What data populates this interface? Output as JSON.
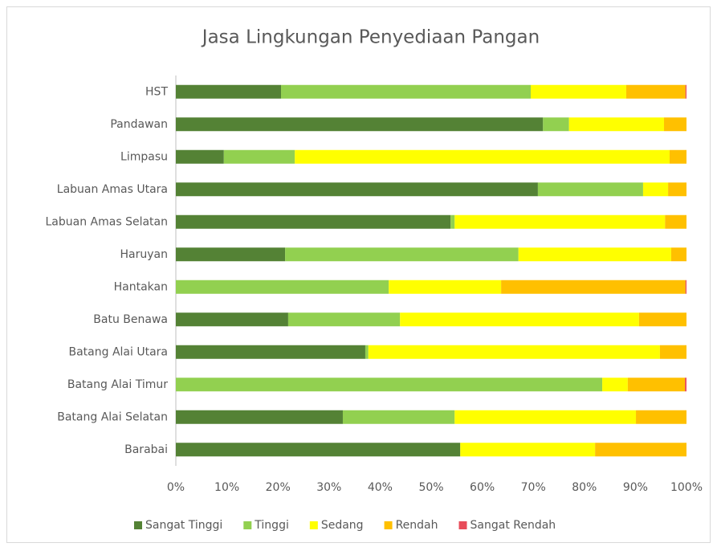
{
  "chart_data": {
    "type": "stacked-bar-horizontal",
    "title": "Jasa Lingkungan Penyediaan Pangan",
    "categories": [
      "HST",
      "Pandawan",
      "Limpasu",
      "Labuan Amas Utara",
      "Labuan Amas Selatan",
      "Haruyan",
      "Hantakan",
      "Batu Benawa",
      "Batang Alai Utara",
      "Batang Alai Timur",
      "Batang Alai Selatan",
      "Barabai"
    ],
    "series": [
      {
        "name": "Sangat Tinggi",
        "color": "#548235",
        "values": [
          20.6,
          71.9,
          9.4,
          70.9,
          53.8,
          21.4,
          0,
          22.0,
          37.1,
          0,
          32.7,
          55.7
        ]
      },
      {
        "name": "Tinggi",
        "color": "#92d050",
        "values": [
          48.9,
          5.1,
          13.9,
          20.6,
          0.8,
          45.7,
          41.7,
          21.9,
          0.6,
          83.5,
          21.9,
          0
        ]
      },
      {
        "name": "Sedang",
        "color": "#ffff00",
        "values": [
          18.7,
          18.6,
          73.4,
          4.9,
          41.2,
          29.9,
          22.0,
          46.8,
          57.1,
          5.0,
          35.5,
          26.4
        ]
      },
      {
        "name": "Rendah",
        "color": "#ffc000",
        "values": [
          11.6,
          4.4,
          3.3,
          3.6,
          4.2,
          3.0,
          36.1,
          9.3,
          5.2,
          11.2,
          9.9,
          17.9
        ]
      },
      {
        "name": "Sangat Rendah",
        "color": "#e84c5a",
        "values": [
          0.2,
          0,
          0,
          0,
          0,
          0,
          0.2,
          0,
          0,
          0.3,
          0,
          0
        ]
      }
    ],
    "xlim": [
      0,
      100
    ],
    "xticks": [
      {
        "value": 0,
        "label": "0%"
      },
      {
        "value": 10,
        "label": "10%"
      },
      {
        "value": 20,
        "label": "20%"
      },
      {
        "value": 30,
        "label": "30%"
      },
      {
        "value": 40,
        "label": "40%"
      },
      {
        "value": 50,
        "label": "50%"
      },
      {
        "value": 60,
        "label": "60%"
      },
      {
        "value": 70,
        "label": "70%"
      },
      {
        "value": 80,
        "label": "80%"
      },
      {
        "value": 90,
        "label": "90%"
      },
      {
        "value": 100,
        "label": "100%"
      }
    ],
    "legend": "bottom"
  }
}
